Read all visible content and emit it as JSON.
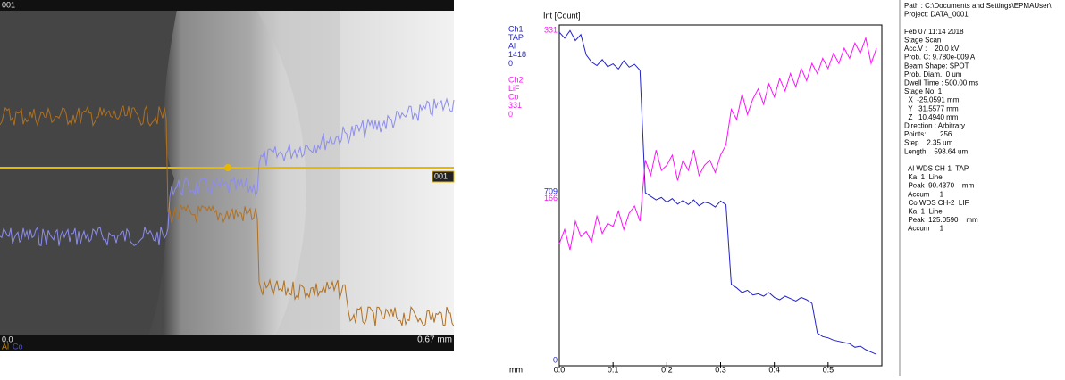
{
  "image_panel": {
    "label": "001",
    "line_label": "001",
    "scale_start": "0.0",
    "scale_end": "0.67 mm",
    "legend_1": "Al",
    "legend_2": "Co"
  },
  "chart_data": {
    "type": "line",
    "y_label": "Int [Count]",
    "x_label": "mm",
    "x": [
      0,
      0.01,
      0.02,
      0.03,
      0.04,
      0.05,
      0.06,
      0.07,
      0.08,
      0.09,
      0.1,
      0.11,
      0.12,
      0.13,
      0.14,
      0.15,
      0.16,
      0.17,
      0.18,
      0.19,
      0.2,
      0.21,
      0.22,
      0.23,
      0.24,
      0.25,
      0.26,
      0.27,
      0.28,
      0.29,
      0.3,
      0.31,
      0.32,
      0.33,
      0.34,
      0.35,
      0.36,
      0.37,
      0.38,
      0.39,
      0.4,
      0.41,
      0.42,
      0.43,
      0.44,
      0.45,
      0.46,
      0.47,
      0.48,
      0.49,
      0.5,
      0.51,
      0.52,
      0.53,
      0.54,
      0.55,
      0.56,
      0.57,
      0.58,
      0.59
    ],
    "xlim": [
      0,
      0.6
    ],
    "xticks": [
      {
        "value": 0,
        "label": "0.0"
      },
      0.1,
      0.2,
      0.3,
      0.4,
      0.5
    ],
    "ylim": [
      0,
      1418
    ],
    "yticks": [
      0,
      709
    ],
    "y2lim": [
      0,
      331
    ],
    "y2ticks": [
      166,
      331
    ],
    "series": [
      {
        "name": "Ch1",
        "channel": "TAP",
        "element": "Al",
        "max": 1418,
        "min": 0,
        "color": "#2323c8",
        "values": [
          1395,
          1370,
          1402,
          1360,
          1385,
          1300,
          1270,
          1255,
          1280,
          1250,
          1262,
          1240,
          1275,
          1248,
          1260,
          1235,
          720,
          705,
          690,
          700,
          680,
          695,
          672,
          688,
          670,
          690,
          665,
          680,
          675,
          660,
          685,
          670,
          335,
          320,
          300,
          310,
          290,
          295,
          285,
          300,
          280,
          270,
          285,
          275,
          265,
          280,
          270,
          255,
          130,
          115,
          110,
          100,
          95,
          90,
          85,
          70,
          75,
          60,
          50,
          40
        ]
      },
      {
        "name": "Ch2",
        "channel": "LiF",
        "element": "Co",
        "max": 331,
        "min": 0,
        "color": "#ff10ff",
        "axis": "y2",
        "values": [
          118,
          132,
          112,
          140,
          125,
          130,
          120,
          145,
          128,
          138,
          135,
          150,
          132,
          148,
          155,
          140,
          200,
          185,
          210,
          190,
          195,
          205,
          180,
          200,
          190,
          210,
          185,
          195,
          200,
          188,
          205,
          215,
          250,
          240,
          265,
          245,
          260,
          270,
          255,
          275,
          262,
          280,
          268,
          285,
          272,
          290,
          278,
          295,
          285,
          300,
          290,
          305,
          295,
          310,
          300,
          315,
          305,
          320,
          295,
          310
        ]
      }
    ]
  },
  "info_panel": {
    "lines": [
      "Path : C:\\Documents and Settings\\EPMAUser\\",
      "Project: DATA_0001",
      "",
      "Feb 07 11:14 2018",
      "Stage Scan",
      "Acc.V :    20.0 kV",
      "Prob. C: 9.780e-009 A",
      "Beam Shape: SPOT",
      "Prob. Diam.: 0 um",
      "Dwell Time : 500.00 ms",
      "Stage No. 1",
      "  X  -25.0591 mm",
      "  Y   31.5577 mm",
      "  Z   10.4940 mm",
      "Direction : Arbitrary",
      "Points:       256",
      "Step    2.35 um",
      "Length:   598.64 um",
      "",
      "  Al WDS CH-1  TAP",
      "  Ka  1  Line",
      "  Peak  90.4370    mm",
      "  Accum     1",
      "  Co WDS CH-2  LIF",
      "  Ka  1  Line",
      "  Peak  125.0590    mm",
      "  Accum     1"
    ]
  }
}
